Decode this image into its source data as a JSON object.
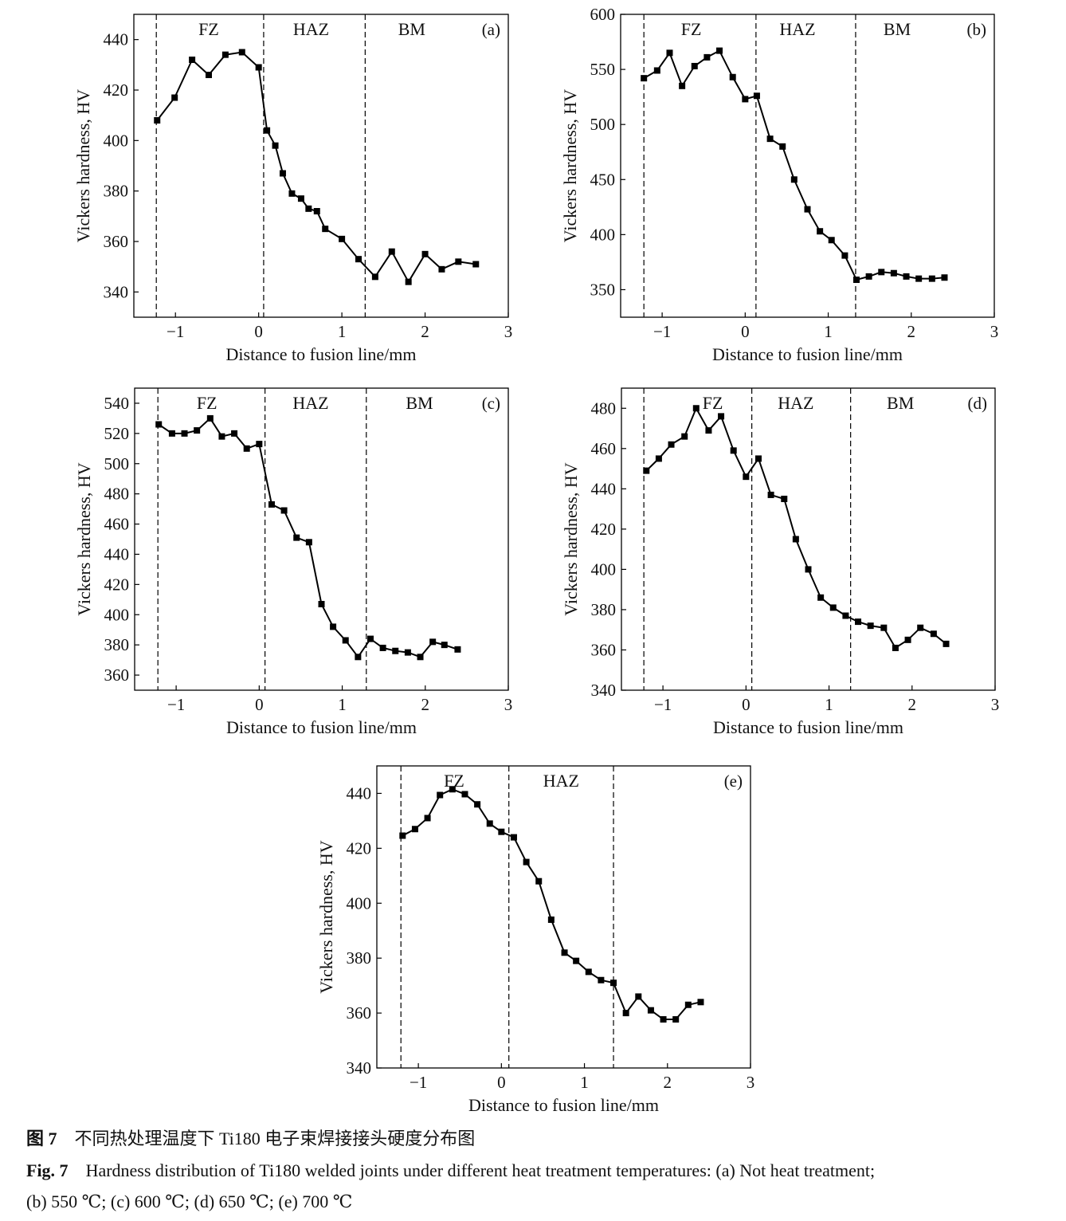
{
  "chart_data": [
    {
      "type": "line",
      "panel_label": "(a)",
      "xlabel": "Distance to fusion line/mm",
      "ylabel": "Vickers hardness, HV",
      "xlim": [
        -1.5,
        3
      ],
      "ylim": [
        330,
        450
      ],
      "x_ticks": [
        -1,
        0,
        1,
        2,
        3
      ],
      "x_tick_labels": [
        "−1",
        "0",
        "1",
        "2",
        "3"
      ],
      "y_ticks": [
        340,
        360,
        380,
        400,
        420,
        440
      ],
      "y_tick_labels": [
        "340",
        "360",
        "380",
        "400",
        "420",
        "440"
      ],
      "zone_boundaries": [
        -1.23,
        0.06,
        1.28
      ],
      "zones": [
        {
          "label": "FZ",
          "x": -0.6
        },
        {
          "label": "HAZ",
          "x": 0.63
        },
        {
          "label": "BM",
          "x": 1.84
        }
      ],
      "grid": false,
      "marker": "square",
      "color": "#000000",
      "x": [
        -1.22,
        -1.01,
        -0.8,
        -0.6,
        -0.4,
        -0.2,
        0,
        0.1,
        0.2,
        0.29,
        0.4,
        0.51,
        0.6,
        0.7,
        0.8,
        1.0,
        1.2,
        1.4,
        1.6,
        1.8,
        2.0,
        2.2,
        2.4,
        2.61
      ],
      "y": [
        408,
        417,
        432,
        426,
        434,
        435,
        429,
        404,
        398,
        387,
        379,
        377,
        373,
        372,
        365,
        361,
        353,
        346,
        356,
        344,
        355,
        349,
        352,
        351
      ]
    },
    {
      "type": "line",
      "panel_label": "(b)",
      "xlabel": "Distance to fusion line/mm",
      "ylabel": "Vickers hardness, HV",
      "xlim": [
        -1.5,
        3
      ],
      "ylim": [
        325,
        600
      ],
      "x_ticks": [
        -1,
        0,
        1,
        2,
        3
      ],
      "x_tick_labels": [
        "−1",
        "0",
        "1",
        "2",
        "3"
      ],
      "y_ticks": [
        350,
        400,
        450,
        500,
        550,
        600
      ],
      "y_tick_labels": [
        "350",
        "400",
        "450",
        "500",
        "550",
        "600"
      ],
      "zone_boundaries": [
        -1.22,
        0.13,
        1.33
      ],
      "zones": [
        {
          "label": "FZ",
          "x": -0.65
        },
        {
          "label": "HAZ",
          "x": 0.63
        },
        {
          "label": "BM",
          "x": 1.83
        }
      ],
      "grid": false,
      "marker": "square",
      "color": "#000000",
      "x": [
        -1.22,
        -1.06,
        -0.91,
        -0.76,
        -0.61,
        -0.46,
        -0.31,
        -0.15,
        0,
        0.14,
        0.3,
        0.45,
        0.59,
        0.75,
        0.9,
        1.04,
        1.2,
        1.34,
        1.49,
        1.64,
        1.79,
        1.94,
        2.09,
        2.25,
        2.4
      ],
      "y": [
        542,
        549,
        565,
        535,
        553,
        561,
        567,
        543,
        523,
        526,
        487,
        480,
        450,
        423,
        403,
        395,
        381,
        359,
        362,
        366,
        365,
        362,
        360,
        360,
        361
      ]
    },
    {
      "type": "line",
      "panel_label": "(c)",
      "xlabel": "Distance to fusion line/mm",
      "ylabel": "Vickers hardness, HV",
      "xlim": [
        -1.5,
        3
      ],
      "ylim": [
        350,
        550
      ],
      "x_ticks": [
        -1,
        0,
        1,
        2,
        3
      ],
      "x_tick_labels": [
        "−1",
        "0",
        "1",
        "2",
        "3"
      ],
      "y_ticks": [
        360,
        380,
        400,
        420,
        440,
        460,
        480,
        500,
        520,
        540
      ],
      "y_tick_labels": [
        "360",
        "380",
        "400",
        "420",
        "440",
        "460",
        "480",
        "500",
        "520",
        "540"
      ],
      "zone_boundaries": [
        -1.22,
        0.07,
        1.29
      ],
      "zones": [
        {
          "label": "FZ",
          "x": -0.63
        },
        {
          "label": "HAZ",
          "x": 0.62
        },
        {
          "label": "BM",
          "x": 1.93
        }
      ],
      "grid": false,
      "marker": "square",
      "color": "#000000",
      "x": [
        -1.21,
        -1.05,
        -0.9,
        -0.75,
        -0.59,
        -0.45,
        -0.3,
        -0.15,
        0,
        0.15,
        0.3,
        0.45,
        0.6,
        0.75,
        0.89,
        1.04,
        1.19,
        1.34,
        1.49,
        1.64,
        1.79,
        1.94,
        2.09,
        2.23,
        2.39
      ],
      "y": [
        526,
        520,
        520,
        522,
        530,
        518,
        520,
        510,
        513,
        473,
        469,
        451,
        448,
        407,
        392,
        383,
        372,
        384,
        378,
        376,
        375,
        372,
        382,
        380,
        377
      ]
    },
    {
      "type": "line",
      "panel_label": "(d)",
      "xlabel": "Distance to fusion line/mm",
      "ylabel": "Vickers hardness, HV",
      "xlim": [
        -1.5,
        3
      ],
      "ylim": [
        340,
        490
      ],
      "x_ticks": [
        -1,
        0,
        1,
        2,
        3
      ],
      "x_tick_labels": [
        "−1",
        "0",
        "1",
        "2",
        "3"
      ],
      "y_ticks": [
        340,
        360,
        380,
        400,
        420,
        440,
        460,
        480
      ],
      "y_tick_labels": [
        "340",
        "360",
        "380",
        "400",
        "420",
        "440",
        "460",
        "480"
      ],
      "zone_boundaries": [
        -1.23,
        0.07,
        1.26
      ],
      "zones": [
        {
          "label": "FZ",
          "x": -0.4
        },
        {
          "label": "HAZ",
          "x": 0.6
        },
        {
          "label": "BM",
          "x": 1.86
        }
      ],
      "grid": false,
      "marker": "square",
      "color": "#000000",
      "x": [
        -1.2,
        -1.05,
        -0.9,
        -0.74,
        -0.6,
        -0.45,
        -0.3,
        -0.15,
        0,
        0.15,
        0.3,
        0.46,
        0.6,
        0.75,
        0.9,
        1.05,
        1.2,
        1.35,
        1.5,
        1.66,
        1.8,
        1.95,
        2.1,
        2.26,
        2.41
      ],
      "y": [
        449,
        455,
        462,
        466,
        480,
        469,
        476,
        459,
        446,
        455,
        437,
        435,
        415,
        400,
        386,
        381,
        377,
        374,
        372,
        371,
        361,
        365,
        371,
        368,
        363
      ]
    },
    {
      "type": "line",
      "panel_label": "(e)",
      "xlabel": "Distance to fusion line/mm",
      "ylabel": "Vickers hardness, HV",
      "xlim": [
        -1.5,
        3
      ],
      "ylim": [
        340,
        450
      ],
      "x_ticks": [
        -1,
        0,
        1,
        2,
        3
      ],
      "x_tick_labels": [
        "−1",
        "0",
        "1",
        "2",
        "3"
      ],
      "y_ticks": [
        340,
        360,
        380,
        400,
        420,
        440
      ],
      "y_tick_labels": [
        "340",
        "360",
        "380",
        "400",
        "420",
        "440"
      ],
      "zone_boundaries": [
        -1.21,
        0.09,
        1.35
      ],
      "zones": [
        {
          "label": "FZ",
          "x": -0.57
        },
        {
          "label": "HAZ",
          "x": 0.72
        }
      ],
      "grid": false,
      "marker": "square",
      "color": "#000000",
      "x": [
        -1.19,
        -1.04,
        -0.89,
        -0.74,
        -0.59,
        -0.44,
        -0.29,
        -0.14,
        0,
        0.15,
        0.3,
        0.45,
        0.6,
        0.76,
        0.9,
        1.05,
        1.2,
        1.35,
        1.5,
        1.65,
        1.8,
        1.95,
        2.1,
        2.25,
        2.4
      ],
      "y": [
        424.6,
        427,
        431,
        439.4,
        441.5,
        439.7,
        436,
        429,
        426,
        424,
        415,
        408,
        394,
        382,
        379,
        375,
        372,
        371,
        360,
        366,
        361,
        357.7,
        357.7,
        363,
        364
      ]
    }
  ],
  "caption": {
    "cn_label": "图 7",
    "cn_text": "不同热处理温度下 Ti180 电子束焊接接头硬度分布图",
    "en_label": "Fig. 7",
    "en_text_line1": "Hardness distribution of Ti180 welded joints under different heat treatment temperatures: (a) Not heat treatment;",
    "en_text_line2": "(b) 550 ℃; (c) 600 ℃; (d) 650 ℃; (e) 700 ℃"
  }
}
